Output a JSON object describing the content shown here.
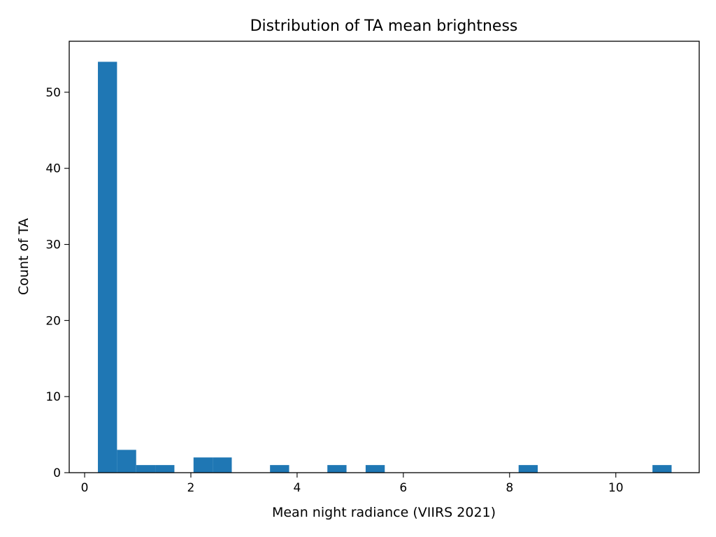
{
  "chart_data": {
    "type": "bar",
    "title": "Distribution of TA mean brightness",
    "xlabel": "Mean night radiance (VIIRS 2021)",
    "ylabel": "Count of TA",
    "xlim": [
      -0.29,
      11.57
    ],
    "ylim": [
      0,
      56.7
    ],
    "x_ticks": [
      0,
      2,
      4,
      6,
      8,
      10
    ],
    "y_ticks": [
      0,
      10,
      20,
      30,
      40,
      50
    ],
    "grid": false,
    "bar_color": "#1f77b4",
    "bins": [
      {
        "x0": 0.25,
        "x1": 0.61,
        "count": 54
      },
      {
        "x0": 0.61,
        "x1": 0.97,
        "count": 3
      },
      {
        "x0": 0.97,
        "x1": 1.33,
        "count": 1
      },
      {
        "x0": 1.33,
        "x1": 1.69,
        "count": 1
      },
      {
        "x0": 1.69,
        "x1": 2.05,
        "count": 0
      },
      {
        "x0": 2.05,
        "x1": 2.41,
        "count": 2
      },
      {
        "x0": 2.41,
        "x1": 2.77,
        "count": 2
      },
      {
        "x0": 2.77,
        "x1": 3.13,
        "count": 0
      },
      {
        "x0": 3.13,
        "x1": 3.49,
        "count": 0
      },
      {
        "x0": 3.49,
        "x1": 3.85,
        "count": 1
      },
      {
        "x0": 3.85,
        "x1": 4.21,
        "count": 0
      },
      {
        "x0": 4.21,
        "x1": 4.57,
        "count": 0
      },
      {
        "x0": 4.57,
        "x1": 4.93,
        "count": 1
      },
      {
        "x0": 4.93,
        "x1": 5.29,
        "count": 0
      },
      {
        "x0": 5.29,
        "x1": 5.65,
        "count": 1
      },
      {
        "x0": 5.65,
        "x1": 6.01,
        "count": 0
      },
      {
        "x0": 6.01,
        "x1": 6.37,
        "count": 0
      },
      {
        "x0": 6.37,
        "x1": 6.73,
        "count": 0
      },
      {
        "x0": 6.73,
        "x1": 7.09,
        "count": 0
      },
      {
        "x0": 7.09,
        "x1": 7.45,
        "count": 0
      },
      {
        "x0": 7.45,
        "x1": 7.81,
        "count": 0
      },
      {
        "x0": 7.81,
        "x1": 8.17,
        "count": 0
      },
      {
        "x0": 8.17,
        "x1": 8.53,
        "count": 1
      },
      {
        "x0": 8.53,
        "x1": 8.89,
        "count": 0
      },
      {
        "x0": 8.89,
        "x1": 9.25,
        "count": 0
      },
      {
        "x0": 9.25,
        "x1": 9.61,
        "count": 0
      },
      {
        "x0": 9.61,
        "x1": 9.97,
        "count": 0
      },
      {
        "x0": 9.97,
        "x1": 10.33,
        "count": 0
      },
      {
        "x0": 10.33,
        "x1": 10.69,
        "count": 0
      },
      {
        "x0": 10.69,
        "x1": 11.05,
        "count": 1
      }
    ]
  }
}
